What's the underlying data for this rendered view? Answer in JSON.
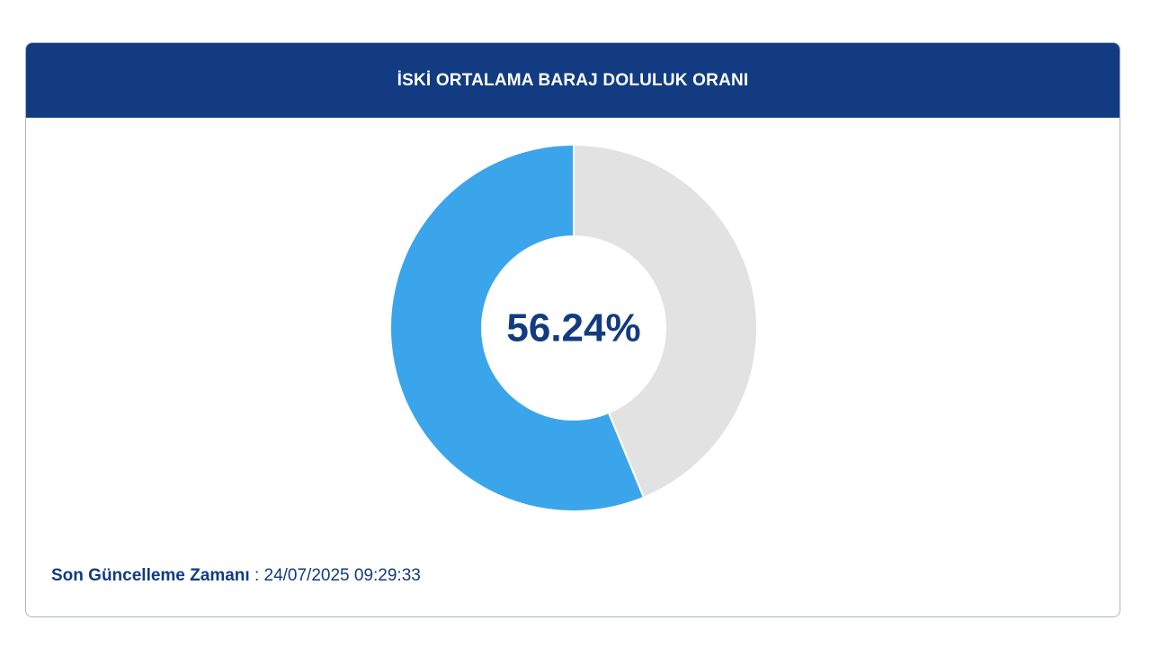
{
  "card": {
    "title": "İSKİ ORTALAMA BARAJ DOLULUK ORANI"
  },
  "chart_data": {
    "type": "pie",
    "donut": true,
    "center_label": "56.24%",
    "slices": [
      {
        "label": "",
        "value": 56.24,
        "color": "#3ba5eb"
      },
      {
        "label": "",
        "value": 43.76,
        "color": "#e2e2e2"
      }
    ]
  },
  "footer": {
    "label": "Son Güncelleme Zamanı",
    "separator": " : ",
    "value": "24/07/2025 09:29:33"
  }
}
